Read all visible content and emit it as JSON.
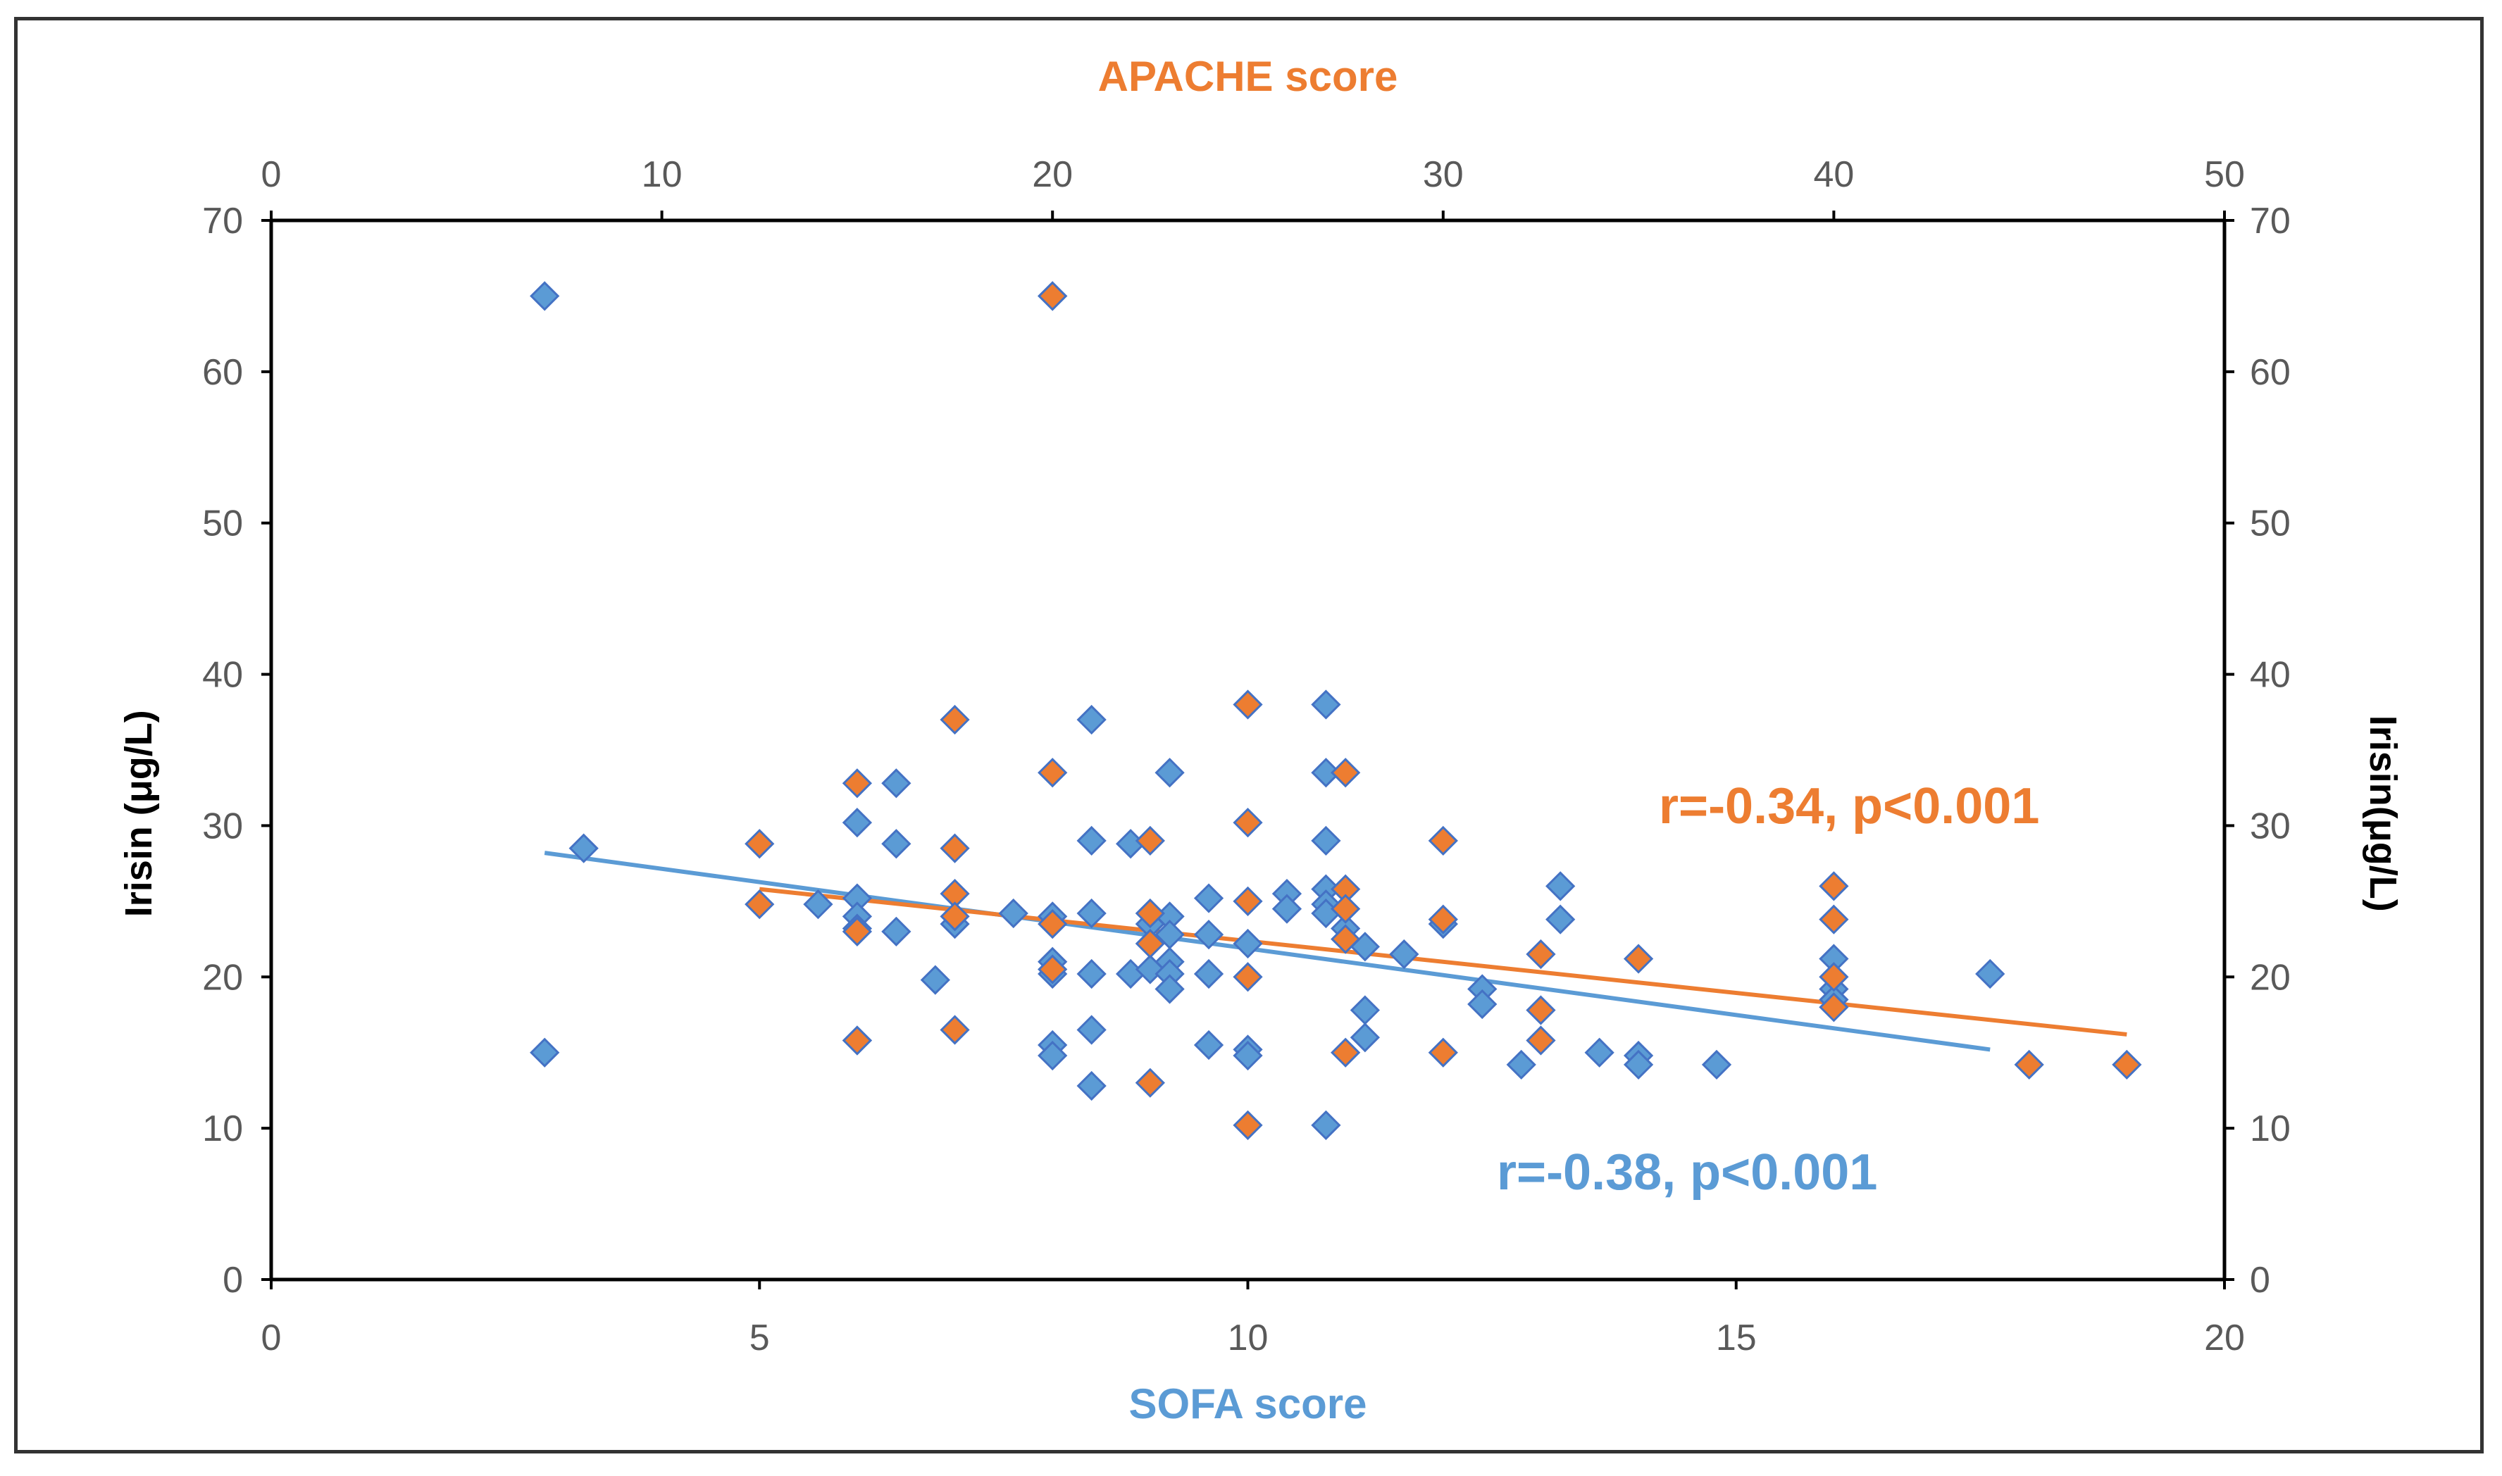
{
  "chart_data": {
    "type": "scatter",
    "top_axis": {
      "title": "APACHE score",
      "range": [
        0,
        50
      ],
      "ticks": [
        "0",
        "10",
        "20",
        "30",
        "40",
        "50"
      ],
      "color": "#ED7D31"
    },
    "bottom_axis": {
      "title": "SOFA score",
      "range": [
        0,
        20
      ],
      "ticks": [
        "0",
        "5",
        "10",
        "15",
        "20"
      ],
      "color": "#5B9BD5"
    },
    "left_axis": {
      "title": "Irisin (μg/L)",
      "range": [
        0,
        70
      ],
      "ticks": [
        "0",
        "10",
        "20",
        "30",
        "40",
        "50",
        "60",
        "70"
      ]
    },
    "right_axis": {
      "title": "Irisin(μg/L)",
      "range": [
        0,
        70
      ],
      "ticks": [
        "0",
        "10",
        "20",
        "30",
        "40",
        "50",
        "60",
        "70"
      ]
    },
    "series": [
      {
        "name": "APACHE",
        "axis": "top",
        "color": "#ED7D31",
        "points": [
          [
            12.5,
            28.8
          ],
          [
            12.5,
            24.8
          ],
          [
            15,
            32.8
          ],
          [
            15,
            15.8
          ],
          [
            15,
            23.0
          ],
          [
            17.5,
            37.0
          ],
          [
            17.5,
            28.5
          ],
          [
            17.5,
            25.5
          ],
          [
            17.5,
            24.0
          ],
          [
            17.5,
            16.5
          ],
          [
            20,
            33.5
          ],
          [
            20,
            23.5
          ],
          [
            20,
            20.5
          ],
          [
            20,
            65.0
          ],
          [
            22.5,
            29.0
          ],
          [
            22.5,
            24.2
          ],
          [
            22.5,
            22.2
          ],
          [
            22.5,
            13.0
          ],
          [
            25,
            38.0
          ],
          [
            25,
            30.2
          ],
          [
            25,
            25.0
          ],
          [
            25,
            20.0
          ],
          [
            25,
            10.2
          ],
          [
            27.5,
            33.5
          ],
          [
            27.5,
            25.8
          ],
          [
            27.5,
            24.5
          ],
          [
            27.5,
            22.5
          ],
          [
            27.5,
            15.0
          ],
          [
            30,
            29.0
          ],
          [
            30,
            23.8
          ],
          [
            30,
            15.0
          ],
          [
            32.5,
            21.5
          ],
          [
            32.5,
            17.8
          ],
          [
            32.5,
            15.8
          ],
          [
            35,
            21.2
          ],
          [
            40,
            26.0
          ],
          [
            40,
            23.8
          ],
          [
            40,
            20.0
          ],
          [
            40,
            18.0
          ],
          [
            45,
            14.2
          ],
          [
            47.5,
            14.2
          ]
        ],
        "trendline": {
          "x": [
            12.5,
            47.5
          ],
          "y": [
            25.8,
            16.2
          ]
        },
        "annotation": "r=-0.34, p<0.001"
      },
      {
        "name": "SOFA",
        "axis": "bottom",
        "color": "#5B9BD5",
        "points": [
          [
            2.8,
            65.0
          ],
          [
            2.8,
            15.0
          ],
          [
            3.2,
            28.5
          ],
          [
            5.6,
            24.8
          ],
          [
            6,
            30.2
          ],
          [
            6,
            25.2
          ],
          [
            6,
            24.0
          ],
          [
            6,
            23.2
          ],
          [
            6,
            15.8
          ],
          [
            6.4,
            32.8
          ],
          [
            6.4,
            28.8
          ],
          [
            6.4,
            23.0
          ],
          [
            6.8,
            19.8
          ],
          [
            7,
            23.5
          ],
          [
            7.6,
            24.2
          ],
          [
            8,
            24.0
          ],
          [
            8,
            21.0
          ],
          [
            8,
            20.2
          ],
          [
            8,
            15.5
          ],
          [
            8,
            14.8
          ],
          [
            8,
            65.0
          ],
          [
            8.4,
            37.0
          ],
          [
            8.4,
            29.0
          ],
          [
            8.4,
            24.2
          ],
          [
            8.4,
            20.2
          ],
          [
            8.4,
            16.5
          ],
          [
            8.4,
            12.8
          ],
          [
            8.8,
            28.8
          ],
          [
            8.8,
            20.2
          ],
          [
            9,
            23.5
          ],
          [
            9,
            20.5
          ],
          [
            9.2,
            33.5
          ],
          [
            9.2,
            24.0
          ],
          [
            9.2,
            22.8
          ],
          [
            9.2,
            21.0
          ],
          [
            9.2,
            20.2
          ],
          [
            9.2,
            19.2
          ],
          [
            9.6,
            25.2
          ],
          [
            9.6,
            22.8
          ],
          [
            9.6,
            20.2
          ],
          [
            9.6,
            15.5
          ],
          [
            10,
            22.2
          ],
          [
            10,
            15.2
          ],
          [
            10,
            14.8
          ],
          [
            10.4,
            25.5
          ],
          [
            10.4,
            24.5
          ],
          [
            10.8,
            38.0
          ],
          [
            10.8,
            33.5
          ],
          [
            10.8,
            29.0
          ],
          [
            10.8,
            25.8
          ],
          [
            10.8,
            24.8
          ],
          [
            10.8,
            24.2
          ],
          [
            10.8,
            10.2
          ],
          [
            11,
            23.2
          ],
          [
            11.2,
            22.0
          ],
          [
            11.2,
            17.8
          ],
          [
            11.2,
            16.0
          ],
          [
            11.6,
            21.5
          ],
          [
            12,
            23.5
          ],
          [
            12.4,
            19.2
          ],
          [
            12.4,
            18.2
          ],
          [
            12.8,
            14.2
          ],
          [
            13.2,
            26.0
          ],
          [
            13.2,
            23.8
          ],
          [
            13.6,
            15.0
          ],
          [
            14,
            14.8
          ],
          [
            14,
            14.2
          ],
          [
            14.8,
            14.2
          ],
          [
            16,
            21.2
          ],
          [
            16,
            19.2
          ],
          [
            16,
            18.5
          ],
          [
            17.6,
            20.2
          ]
        ],
        "trendline": {
          "x": [
            2.8,
            17.6
          ],
          "y": [
            28.2,
            15.2
          ]
        },
        "annotation": "r=-0.38, p<0.001"
      }
    ],
    "grid": false,
    "legend": "none"
  }
}
